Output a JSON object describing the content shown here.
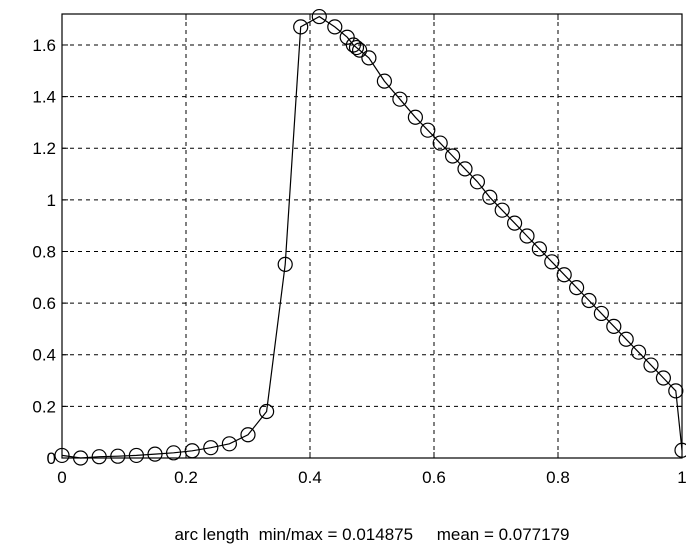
{
  "chart_data": {
    "type": "line",
    "title": "",
    "xlabel": "arc length  min/max = 0.014875     mean = 0.077179",
    "ylabel": "",
    "xlim": [
      0,
      1
    ],
    "ylim": [
      0,
      1.72
    ],
    "xticks": [
      0,
      0.2,
      0.4,
      0.6,
      0.8,
      1
    ],
    "xtick_labels": [
      "0",
      "0.2",
      "0.4",
      "0.6",
      "0.8",
      "1"
    ],
    "yticks": [
      0,
      0.2,
      0.4,
      0.6,
      0.8,
      1,
      1.2,
      1.4,
      1.6
    ],
    "ytick_labels": [
      "0",
      "0.2",
      "0.4",
      "0.6",
      "0.8",
      "1",
      "1.2",
      "1.4",
      "1.6"
    ],
    "grid": true,
    "marker": "circle",
    "line_color": "#000000",
    "series": [
      {
        "x": [
          0,
          0.03,
          0.06,
          0.09,
          0.12,
          0.15,
          0.18,
          0.21,
          0.24,
          0.27,
          0.3,
          0.33,
          0.36,
          0.385,
          0.415,
          0.44,
          0.46,
          0.47,
          0.475,
          0.48,
          0.495,
          0.52,
          0.545,
          0.57,
          0.59,
          0.61,
          0.63,
          0.65,
          0.67,
          0.69,
          0.71,
          0.73,
          0.75,
          0.77,
          0.79,
          0.81,
          0.83,
          0.85,
          0.87,
          0.89,
          0.91,
          0.93,
          0.95,
          0.97,
          0.99,
          1.0
        ],
        "y": [
          0.01,
          0.0,
          0.005,
          0.007,
          0.01,
          0.015,
          0.02,
          0.028,
          0.04,
          0.055,
          0.09,
          0.18,
          0.75,
          1.67,
          1.71,
          1.67,
          1.63,
          1.6,
          1.59,
          1.58,
          1.55,
          1.46,
          1.39,
          1.32,
          1.27,
          1.22,
          1.17,
          1.12,
          1.07,
          1.01,
          0.96,
          0.91,
          0.86,
          0.81,
          0.76,
          0.71,
          0.66,
          0.61,
          0.56,
          0.51,
          0.46,
          0.41,
          0.36,
          0.31,
          0.26,
          0.03
        ]
      }
    ]
  }
}
